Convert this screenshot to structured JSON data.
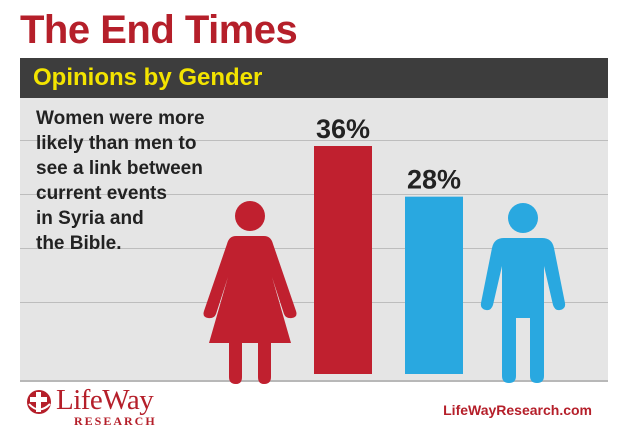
{
  "title": "The End Times",
  "subtitle": "Opinions by Gender",
  "annotation_lines": [
    "Women were more",
    "likely than men to",
    "see a link between",
    "current events",
    "in Syria and",
    "the Bible."
  ],
  "footer": {
    "logo_name": "LifeWay",
    "logo_sub": "RESEARCH",
    "url": "LifeWayResearch.com"
  },
  "colors": {
    "title": "#b51f2a",
    "women": "#c0202f",
    "men": "#29a8e0",
    "subtitle": "#f3e400",
    "header_bar": "#3d3d3d",
    "panel": "#e5e5e5"
  },
  "icons": {
    "women": "woman-figure-icon",
    "men": "man-figure-icon",
    "logo": "lifeway-logo-icon"
  },
  "chart_data": {
    "type": "bar",
    "categories": [
      "Women",
      "Men"
    ],
    "values": [
      36,
      28
    ],
    "data_labels": [
      "36%",
      "28%"
    ],
    "title": "Opinions by Gender",
    "ylim": [
      0,
      36
    ]
  }
}
